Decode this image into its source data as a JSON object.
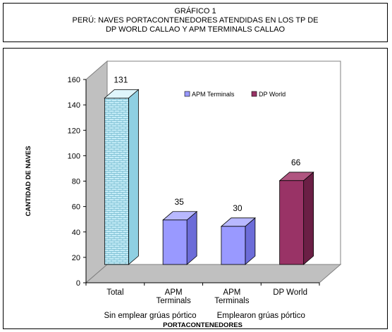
{
  "title": {
    "line1": "GRÁFICO 1",
    "line2": "PERÚ: NAVES PORTACONTENEDORES ATENDIDAS EN LOS TP DE",
    "line3": "DP WORLD CALLAO Y APM TERMINALS CALLAO"
  },
  "chart_data": {
    "type": "bar",
    "title": "",
    "xlabel": "PORTACONTENEDORES",
    "ylabel": "CANTIDAD DE NAVES",
    "ylim": [
      0,
      160
    ],
    "yticks": [
      0,
      20,
      40,
      60,
      80,
      100,
      120,
      140,
      160
    ],
    "categories": [
      [
        "Total"
      ],
      [
        "APM",
        "Terminals"
      ],
      [
        "APM",
        "Terminals"
      ],
      [
        "DP World"
      ]
    ],
    "values": [
      131,
      35,
      30,
      66
    ],
    "group_labels": [
      "Sin emplear grúas pórtico",
      "Emplearon grúas pórtico"
    ],
    "legend": [
      {
        "name": "APM Terminals",
        "color": "#9999ff"
      },
      {
        "name": "DP World",
        "color": "#993366"
      }
    ],
    "legend_position": "top-right",
    "grid": false,
    "bar_styles": [
      {
        "front": "#c4ecf7",
        "side": "#8fcfe2",
        "top": "#dff5fb",
        "pattern": "bricks"
      },
      {
        "front": "#9999ff",
        "side": "#6c6cd8",
        "top": "#b8b8ff",
        "pattern": "none"
      },
      {
        "front": "#9999ff",
        "side": "#6c6cd8",
        "top": "#b8b8ff",
        "pattern": "none"
      },
      {
        "front": "#993366",
        "side": "#6b1f45",
        "top": "#b05580",
        "pattern": "none"
      }
    ]
  }
}
